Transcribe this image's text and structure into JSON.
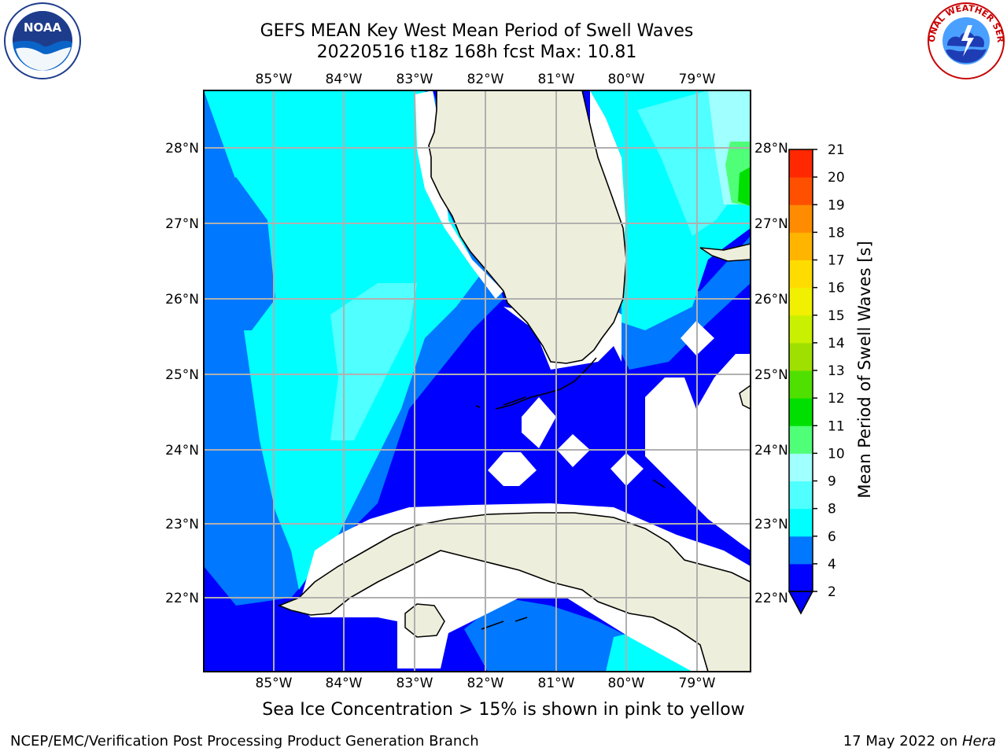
{
  "header": {
    "title_line1": "GEFS MEAN Key West Mean Period of Swell Waves",
    "title_line2": "20220516 t18z 168h fcst   Max: 10.81"
  },
  "logos": {
    "left": {
      "icon": "noaa-logo",
      "text": "NOAA"
    },
    "right": {
      "icon": "nws-logo"
    }
  },
  "map": {
    "region": "Key West / Florida Straits",
    "lon_labels": [
      "85°W",
      "84°W",
      "83°W",
      "82°W",
      "81°W",
      "80°W",
      "79°W"
    ],
    "lat_labels": [
      "28°N",
      "27°N",
      "26°N",
      "25°N",
      "24°N",
      "23°N",
      "22°N"
    ],
    "gridlines": true,
    "colors": {
      "land": "#eeeedc",
      "c2_4": "#0000ff",
      "c4_6": "#0078ff",
      "c6_8": "#00ffff",
      "c8_9": "#50ffff",
      "c9_10": "#a0ffff",
      "c10_11": "#50ff78",
      "c11_12": "#00e000",
      "coast": "#000000",
      "grid": "#b0b0b0"
    }
  },
  "colorbar": {
    "label": "Mean Period of Swell Waves [s]",
    "ticks": [
      "2",
      "4",
      "6",
      "8",
      "9",
      "10",
      "11",
      "12",
      "13",
      "14",
      "15",
      "16",
      "17",
      "18",
      "19",
      "20",
      "21"
    ],
    "colors": [
      "#0000ff",
      "#0078ff",
      "#00ffff",
      "#50ffff",
      "#a0ffff",
      "#50ff78",
      "#00e000",
      "#50e000",
      "#a0e000",
      "#c8f000",
      "#f0f000",
      "#ffdc00",
      "#ffb400",
      "#ff8c00",
      "#ff5000",
      "#ff2800"
    ],
    "extend": "min"
  },
  "notes": {
    "ice": "Sea Ice Concentration > 15% is shown in pink to yellow"
  },
  "footer": {
    "left": "NCEP/EMC/Verification Post Processing Product Generation Branch",
    "right_date": "17 May 2022 on ",
    "right_host": "Hera"
  }
}
